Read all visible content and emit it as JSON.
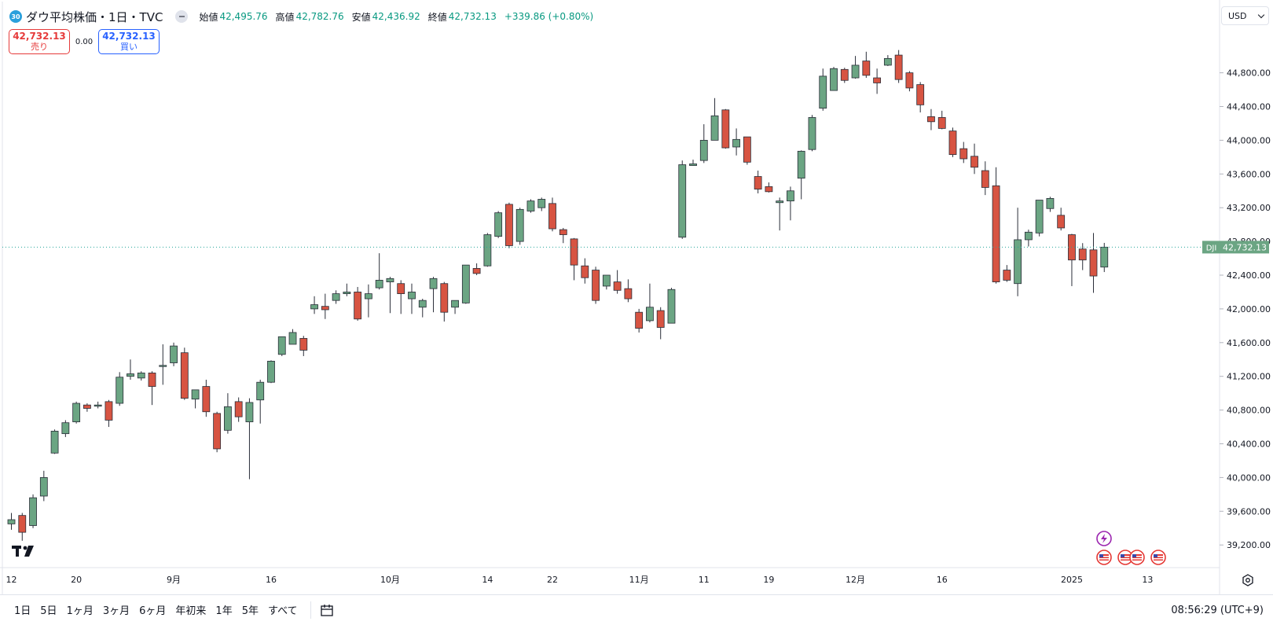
{
  "header": {
    "badge": "30",
    "title": "ダウ平均株価・1日・TVC",
    "open_label": "始値",
    "open_value": "42,495.76",
    "high_label": "高値",
    "high_value": "42,782.76",
    "low_label": "安値",
    "low_value": "42,436.92",
    "close_label": "終値",
    "close_value": "42,732.13",
    "change": "+339.86 (+0.80%)"
  },
  "trade": {
    "sell_price": "42,732.13",
    "sell_label": "売り",
    "spread": "0.00",
    "buy_price": "42,732.13",
    "buy_label": "買い"
  },
  "currency": "USD",
  "price_label": {
    "ticker": "DJI",
    "value": "42,732.13"
  },
  "bottom_bar": {
    "ranges": [
      "1日",
      "5日",
      "1ヶ月",
      "3ヶ月",
      "6ヶ月",
      "年初来",
      "1年",
      "5年",
      "すべて"
    ],
    "clock": "08:56:29 (UTC+9)"
  },
  "colors": {
    "up": "#6ba583",
    "down": "#d75442",
    "line": "#26a69a",
    "text": "#131722"
  },
  "chart_data": {
    "type": "candlestick",
    "y_ticks": [
      39200,
      39600,
      40000,
      40400,
      40800,
      41200,
      41600,
      42000,
      42400,
      42800,
      43200,
      43600,
      44000,
      44400,
      44800
    ],
    "y_tick_labels": [
      "39,200.00",
      "39,600.00",
      "40,000.00",
      "40,400.00",
      "40,800.00",
      "41,200.00",
      "41,600.00",
      "42,000.00",
      "42,400.00",
      "42,800.00",
      "43,200.00",
      "43,600.00",
      "44,000.00",
      "44,400.00",
      "44,800.00"
    ],
    "ylim": [
      38900,
      45100
    ],
    "x_labels": [
      {
        "index": 0,
        "label": "12"
      },
      {
        "index": 6,
        "label": "20"
      },
      {
        "index": 15,
        "label": "9月"
      },
      {
        "index": 24,
        "label": "16"
      },
      {
        "index": 35,
        "label": "10月"
      },
      {
        "index": 44,
        "label": "14"
      },
      {
        "index": 50,
        "label": "22"
      },
      {
        "index": 58,
        "label": "11月"
      },
      {
        "index": 64,
        "label": "11"
      },
      {
        "index": 70,
        "label": "19"
      },
      {
        "index": 78,
        "label": "12月"
      },
      {
        "index": 86,
        "label": "16"
      },
      {
        "index": 98,
        "label": "2025"
      },
      {
        "index": 105,
        "label": "13"
      }
    ],
    "last_price": 42732.13,
    "candles": [
      [
        39450,
        39580,
        39380,
        39500
      ],
      [
        39550,
        39580,
        39250,
        39350
      ],
      [
        39430,
        39800,
        39400,
        39760
      ],
      [
        39780,
        40080,
        39720,
        40000
      ],
      [
        40290,
        40570,
        40280,
        40550
      ],
      [
        40520,
        40680,
        40480,
        40650
      ],
      [
        40660,
        40900,
        40640,
        40880
      ],
      [
        40860,
        40880,
        40780,
        40820
      ],
      [
        40850,
        40900,
        40820,
        40860
      ],
      [
        40900,
        40920,
        40600,
        40680
      ],
      [
        40880,
        41250,
        40850,
        41190
      ],
      [
        41200,
        41400,
        41160,
        41230
      ],
      [
        41180,
        41260,
        41150,
        41240
      ],
      [
        41240,
        41260,
        40860,
        41080
      ],
      [
        41320,
        41580,
        41100,
        41330
      ],
      [
        41360,
        41600,
        41320,
        41560
      ],
      [
        41480,
        41540,
        40920,
        40940
      ],
      [
        40930,
        41000,
        40820,
        41040
      ],
      [
        41080,
        41160,
        40720,
        40780
      ],
      [
        40760,
        40780,
        40300,
        40340
      ],
      [
        40560,
        41000,
        40520,
        40840
      ],
      [
        40900,
        40950,
        40660,
        40720
      ],
      [
        40660,
        40940,
        39980,
        40890
      ],
      [
        40920,
        41160,
        40640,
        41130
      ],
      [
        41130,
        41390,
        41120,
        41380
      ],
      [
        41460,
        41620,
        41440,
        41670
      ],
      [
        41580,
        41760,
        41580,
        41720
      ],
      [
        41650,
        41680,
        41440,
        41510
      ],
      [
        42000,
        42150,
        41940,
        42050
      ],
      [
        42030,
        42180,
        41880,
        41990
      ],
      [
        42100,
        42220,
        42060,
        42180
      ],
      [
        42180,
        42300,
        42150,
        42200
      ],
      [
        42200,
        42260,
        41860,
        41880
      ],
      [
        42120,
        42290,
        41900,
        42180
      ],
      [
        42250,
        42660,
        42230,
        42340
      ],
      [
        42320,
        42380,
        41950,
        42360
      ],
      [
        42300,
        42340,
        41940,
        42180
      ],
      [
        42120,
        42300,
        41940,
        42200
      ],
      [
        42020,
        42120,
        41900,
        42100
      ],
      [
        42240,
        42380,
        41960,
        42360
      ],
      [
        42300,
        42320,
        41850,
        41960
      ],
      [
        42020,
        42100,
        41940,
        42100
      ],
      [
        42070,
        42520,
        42060,
        42520
      ],
      [
        42480,
        42540,
        42400,
        42420
      ],
      [
        42510,
        42900,
        42500,
        42880
      ],
      [
        42860,
        43160,
        42840,
        43140
      ],
      [
        43240,
        43260,
        42720,
        42750
      ],
      [
        42800,
        43200,
        42760,
        43180
      ],
      [
        43160,
        43300,
        43140,
        43280
      ],
      [
        43200,
        43320,
        43160,
        43300
      ],
      [
        43250,
        43320,
        42920,
        42950
      ],
      [
        42940,
        42960,
        42780,
        42880
      ],
      [
        42830,
        42840,
        42340,
        42520
      ],
      [
        42510,
        42600,
        42300,
        42370
      ],
      [
        42460,
        42500,
        42060,
        42100
      ],
      [
        42270,
        42400,
        42230,
        42400
      ],
      [
        42320,
        42460,
        42180,
        42220
      ],
      [
        42240,
        42350,
        42080,
        42120
      ],
      [
        41960,
        42000,
        41720,
        41770
      ],
      [
        41860,
        42300,
        41840,
        42020
      ],
      [
        41980,
        42020,
        41640,
        41780
      ],
      [
        41830,
        42250,
        41830,
        42230
      ],
      [
        42850,
        43760,
        42830,
        43710
      ],
      [
        43700,
        43770,
        43700,
        43720
      ],
      [
        43760,
        44190,
        43730,
        44000
      ],
      [
        44000,
        44500,
        44000,
        44290
      ],
      [
        44360,
        44370,
        43900,
        43910
      ],
      [
        43920,
        44140,
        43820,
        44010
      ],
      [
        44040,
        44040,
        43710,
        43740
      ],
      [
        43570,
        43640,
        43370,
        43420
      ],
      [
        43450,
        43500,
        43380,
        43390
      ],
      [
        43260,
        43320,
        42930,
        43280
      ],
      [
        43280,
        43450,
        43050,
        43400
      ],
      [
        43550,
        43880,
        43300,
        43870
      ],
      [
        43890,
        44300,
        43870,
        44270
      ],
      [
        44380,
        44850,
        44350,
        44760
      ],
      [
        44590,
        44870,
        44590,
        44850
      ],
      [
        44840,
        44860,
        44680,
        44710
      ],
      [
        44740,
        45000,
        44730,
        44890
      ],
      [
        44940,
        45050,
        44740,
        44770
      ],
      [
        44740,
        44850,
        44550,
        44680
      ],
      [
        44890,
        45010,
        44880,
        44970
      ],
      [
        45010,
        45070,
        44680,
        44720
      ],
      [
        44800,
        44820,
        44580,
        44620
      ],
      [
        44660,
        44690,
        44330,
        44420
      ],
      [
        44280,
        44370,
        44120,
        44220
      ],
      [
        44270,
        44350,
        44130,
        44140
      ],
      [
        44110,
        44150,
        43800,
        43830
      ],
      [
        43900,
        43980,
        43730,
        43780
      ],
      [
        43810,
        43960,
        43600,
        43680
      ],
      [
        43640,
        43750,
        43350,
        43440
      ],
      [
        43460,
        43680,
        42300,
        42320
      ],
      [
        42460,
        42520,
        42320,
        42340
      ],
      [
        42300,
        43200,
        42150,
        42820
      ],
      [
        42820,
        42940,
        42740,
        42910
      ],
      [
        42900,
        43290,
        42860,
        43290
      ],
      [
        43190,
        43330,
        43150,
        43310
      ],
      [
        43110,
        43200,
        42930,
        42960
      ],
      [
        42880,
        42890,
        42270,
        42580
      ],
      [
        42710,
        42780,
        42460,
        42580
      ],
      [
        42700,
        42900,
        42190,
        42390
      ],
      [
        42495.76,
        42782.76,
        42436.92,
        42732.13
      ]
    ]
  }
}
